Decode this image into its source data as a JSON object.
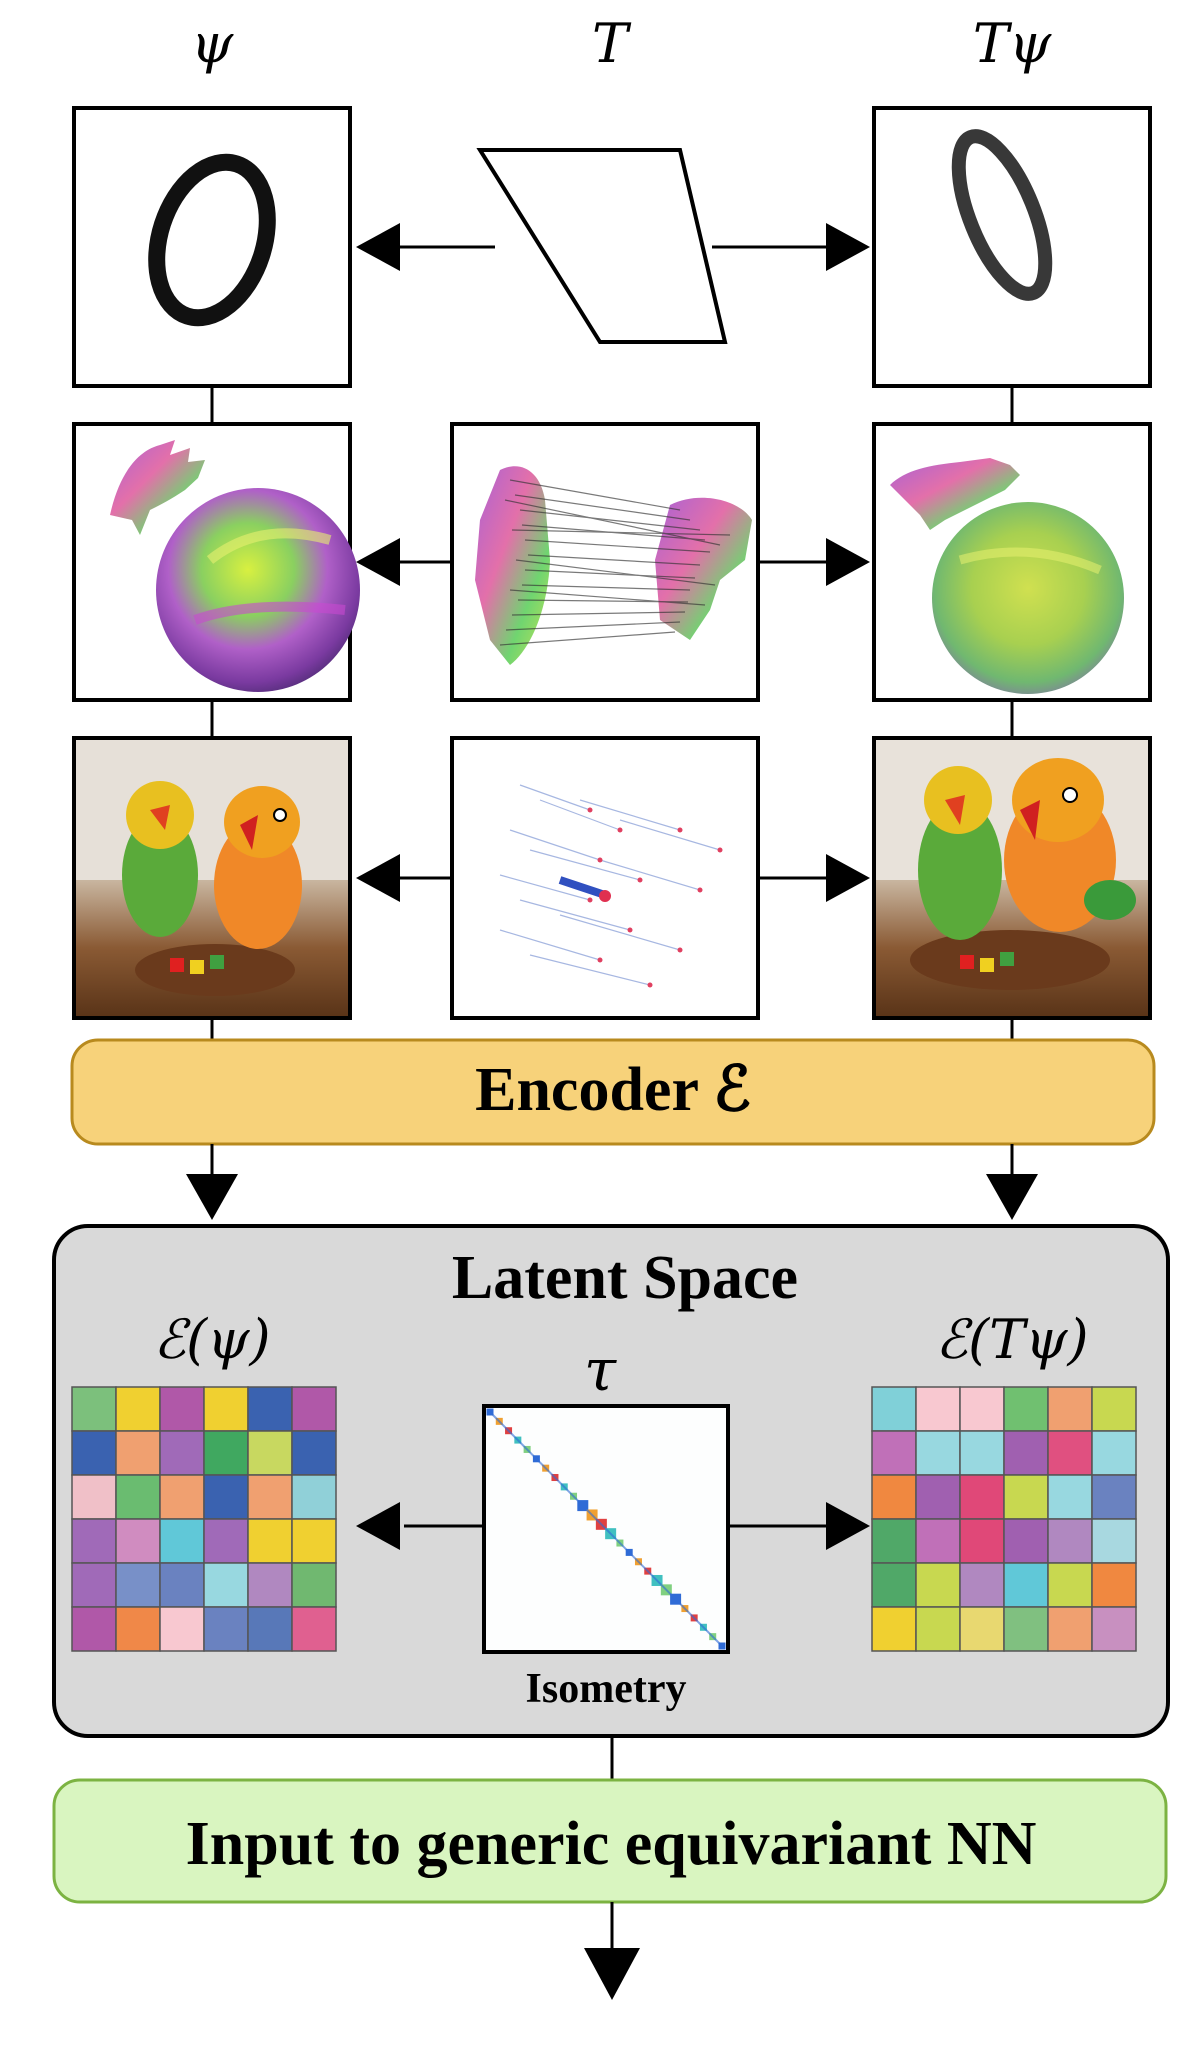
{
  "labels": {
    "psi": "ψ",
    "T": "T",
    "T_psi": "Tψ",
    "encoder": "Encoder ℰ",
    "latent_space": "Latent Space",
    "enc_psi": "ℰ(ψ)",
    "enc_T_psi": "ℰ(Tψ)",
    "tau": "τ",
    "isometry": "Isometry",
    "output": "Input to generic equivariant NN"
  },
  "rows": [
    {
      "name": "digit",
      "left": "handwritten zero",
      "middle": "parallelogram transform",
      "right": "sheared zero"
    },
    {
      "name": "shape",
      "left": "hand and sphere",
      "middle": "hand correspondences",
      "right": "deformed hand and sphere"
    },
    {
      "name": "photo",
      "left": "lego birds photo",
      "middle": "optical flow",
      "right": "lego birds photo shifted"
    }
  ],
  "colors": {
    "encoder_fill": "#f7d27a",
    "encoder_stroke": "#b88a1e",
    "latent_fill": "#d9d9d9",
    "output_fill": "#d9f5c0",
    "output_stroke": "#7cb342",
    "matrix_line": "#2f6bd6"
  },
  "grids": {
    "left": [
      [
        "#7cc07c",
        "#f0d030",
        "#b058a8",
        "#f0d030",
        "#3a62b0",
        "#b058a8"
      ],
      [
        "#3a62b0",
        "#f0a070",
        "#a06ab8",
        "#40a860",
        "#c8d860",
        "#3a62b0"
      ],
      [
        "#f0c0c8",
        "#6abc70",
        "#f0a070",
        "#3a62b0",
        "#f0a070",
        "#90d0d8"
      ],
      [
        "#a06ab8",
        "#d08cc0",
        "#60c8d8",
        "#a06ab8",
        "#f0d030",
        "#f0d030"
      ],
      [
        "#a06ab8",
        "#7890c8",
        "#6a82c0",
        "#98d8e0",
        "#b088c0",
        "#70b870"
      ],
      [
        "#b058a8",
        "#f08848",
        "#f8c8d0",
        "#6a82c0",
        "#5878b8",
        "#e06090"
      ]
    ],
    "right": [
      [
        "#80d0d8",
        "#f8c8d0",
        "#f8c8d0",
        "#70c070",
        "#f0a070",
        "#c8d850"
      ],
      [
        "#c070b8",
        "#98d8e0",
        "#98d8e0",
        "#a060b0",
        "#e05080",
        "#98d8e0"
      ],
      [
        "#f08840",
        "#a060b0",
        "#e04878",
        "#c8d850",
        "#98d8e0",
        "#6a82c0"
      ],
      [
        "#50a868",
        "#c070b8",
        "#e04878",
        "#a060b0",
        "#b088c0",
        "#a8d8e0"
      ],
      [
        "#50a868",
        "#c8d850",
        "#b088c0",
        "#60c8d8",
        "#c8d850",
        "#f08840"
      ],
      [
        "#f0d030",
        "#c8d850",
        "#e8d870",
        "#80c080",
        "#f0a070",
        "#c890c0"
      ]
    ]
  }
}
